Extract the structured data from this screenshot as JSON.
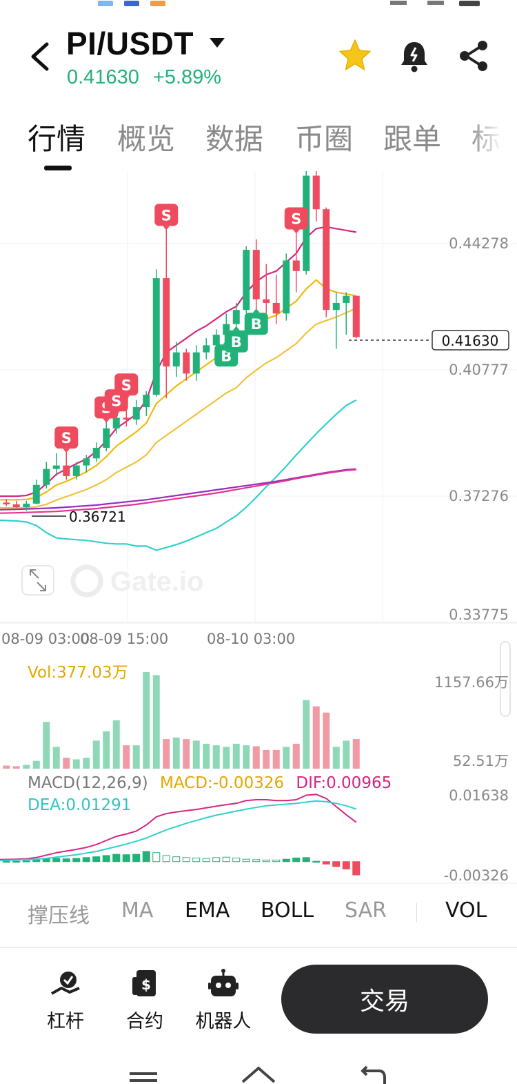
{
  "header": {
    "pair": "PI/USDT",
    "price": "0.41630",
    "change": "+5.89%"
  },
  "tabs": [
    {
      "label": "行情",
      "active": true
    },
    {
      "label": "概览",
      "active": false
    },
    {
      "label": "数据",
      "active": false
    },
    {
      "label": "币圈",
      "active": false
    },
    {
      "label": "跟单",
      "active": false
    },
    {
      "label": "标",
      "active": false
    }
  ],
  "chart": {
    "price_axis": [
      "0.44278",
      "0.40777",
      "0.37276",
      "0.33775"
    ],
    "current_price_tag": "0.41630",
    "low_marker": "0.36721",
    "time_axis": [
      "08-09 03:00",
      "08-09 15:00",
      "08-10 03:00"
    ],
    "watermark": "Gate.io",
    "vol_label": "Vol:377.03万",
    "vol_axis": [
      "1157.66万",
      "52.51万"
    ],
    "macd_params": "MACD(12,26,9)",
    "macd_value": "MACD:-0.00326",
    "dif_value": "DIF:0.00965",
    "dea_value": "DEA:0.01291",
    "macd_axis": [
      "0.01638",
      "-0.00326"
    ],
    "colors": {
      "up": "#22b179",
      "down": "#ee4b5e",
      "ma1": "#d6257f",
      "ma2": "#f0b90b",
      "boll": "#30cfcf",
      "ma3": "#9b2bbf"
    }
  },
  "chart_data": {
    "type": "candlestick",
    "price_ylim": [
      0.33775,
      0.44278
    ],
    "candles": [
      {
        "o": 0.3695,
        "h": 0.3705,
        "l": 0.3685,
        "c": 0.369
      },
      {
        "o": 0.369,
        "h": 0.37,
        "l": 0.368,
        "c": 0.3682
      },
      {
        "o": 0.3682,
        "h": 0.37,
        "l": 0.3672,
        "c": 0.3692
      },
      {
        "o": 0.3692,
        "h": 0.376,
        "l": 0.369,
        "c": 0.3745
      },
      {
        "o": 0.3745,
        "h": 0.381,
        "l": 0.3735,
        "c": 0.379
      },
      {
        "o": 0.379,
        "h": 0.3835,
        "l": 0.377,
        "c": 0.38
      },
      {
        "o": 0.38,
        "h": 0.384,
        "l": 0.376,
        "c": 0.377
      },
      {
        "o": 0.377,
        "h": 0.381,
        "l": 0.376,
        "c": 0.38
      },
      {
        "o": 0.38,
        "h": 0.383,
        "l": 0.378,
        "c": 0.382
      },
      {
        "o": 0.382,
        "h": 0.3865,
        "l": 0.381,
        "c": 0.385
      },
      {
        "o": 0.385,
        "h": 0.3925,
        "l": 0.384,
        "c": 0.3905
      },
      {
        "o": 0.3905,
        "h": 0.3945,
        "l": 0.389,
        "c": 0.3935
      },
      {
        "o": 0.3935,
        "h": 0.399,
        "l": 0.391,
        "c": 0.393
      },
      {
        "o": 0.393,
        "h": 0.3985,
        "l": 0.3915,
        "c": 0.3965
      },
      {
        "o": 0.3965,
        "h": 0.401,
        "l": 0.394,
        "c": 0.4
      },
      {
        "o": 0.4,
        "h": 0.4355,
        "l": 0.3995,
        "c": 0.433
      },
      {
        "o": 0.433,
        "h": 0.447,
        "l": 0.399,
        "c": 0.408
      },
      {
        "o": 0.408,
        "h": 0.415,
        "l": 0.405,
        "c": 0.412
      },
      {
        "o": 0.412,
        "h": 0.413,
        "l": 0.404,
        "c": 0.406
      },
      {
        "o": 0.406,
        "h": 0.414,
        "l": 0.404,
        "c": 0.412
      },
      {
        "o": 0.412,
        "h": 0.416,
        "l": 0.41,
        "c": 0.414
      },
      {
        "o": 0.414,
        "h": 0.4185,
        "l": 0.412,
        "c": 0.417
      },
      {
        "o": 0.417,
        "h": 0.423,
        "l": 0.415,
        "c": 0.42
      },
      {
        "o": 0.42,
        "h": 0.426,
        "l": 0.419,
        "c": 0.424
      },
      {
        "o": 0.424,
        "h": 0.442,
        "l": 0.423,
        "c": 0.441
      },
      {
        "o": 0.441,
        "h": 0.444,
        "l": 0.424,
        "c": 0.427
      },
      {
        "o": 0.427,
        "h": 0.437,
        "l": 0.42,
        "c": 0.426
      },
      {
        "o": 0.426,
        "h": 0.434,
        "l": 0.42,
        "c": 0.423
      },
      {
        "o": 0.423,
        "h": 0.44,
        "l": 0.421,
        "c": 0.438
      },
      {
        "o": 0.438,
        "h": 0.446,
        "l": 0.429,
        "c": 0.435
      },
      {
        "o": 0.435,
        "h": 0.464,
        "l": 0.434,
        "c": 0.462
      },
      {
        "o": 0.462,
        "h": 0.466,
        "l": 0.449,
        "c": 0.4525
      },
      {
        "o": 0.4525,
        "h": 0.453,
        "l": 0.422,
        "c": 0.424
      },
      {
        "o": 0.424,
        "h": 0.429,
        "l": 0.413,
        "c": 0.426
      },
      {
        "o": 0.426,
        "h": 0.429,
        "l": 0.417,
        "c": 0.428
      },
      {
        "o": 0.428,
        "h": 0.428,
        "l": 0.416,
        "c": 0.4163
      }
    ],
    "volumes": [
      10,
      8,
      12,
      25,
      150,
      70,
      35,
      30,
      35,
      90,
      120,
      155,
      75,
      75,
      310,
      300,
      95,
      100,
      95,
      90,
      80,
      75,
      70,
      80,
      75,
      72,
      60,
      60,
      70,
      80,
      220,
      200,
      180,
      70,
      90,
      95
    ],
    "macd_hist": [
      0.0001,
      0.0001,
      0.0002,
      0.0004,
      0.0008,
      0.0008,
      0.0007,
      0.0008,
      0.001,
      0.0012,
      0.0015,
      0.0018,
      0.0017,
      0.0018,
      0.0025,
      0.0022,
      0.0015,
      0.0012,
      0.001,
      0.0009,
      0.0008,
      0.001,
      0.0011,
      0.0009,
      0.0006,
      0.0005,
      0.0004,
      0.0004,
      0.0006,
      0.0009,
      0.001,
      0.0001,
      -0.0006,
      -0.0012,
      -0.0018,
      -0.00326
    ],
    "price_lines": {
      "ma_pink": [
        0.3713,
        0.3713,
        0.3715,
        0.3725,
        0.3748,
        0.3775,
        0.379,
        0.3805,
        0.3818,
        0.384,
        0.387,
        0.3905,
        0.3925,
        0.3945,
        0.3985,
        0.4065,
        0.412,
        0.414,
        0.416,
        0.418,
        0.4195,
        0.4215,
        0.4235,
        0.425,
        0.429,
        0.432,
        0.434,
        0.435,
        0.4375,
        0.44,
        0.4445,
        0.447,
        0.4475,
        0.447,
        0.4465,
        0.446
      ],
      "ma_orange": [
        0.3703,
        0.3703,
        0.3704,
        0.371,
        0.3725,
        0.3745,
        0.3755,
        0.3768,
        0.3782,
        0.38,
        0.3825,
        0.3855,
        0.3875,
        0.3895,
        0.392,
        0.3975,
        0.4,
        0.4025,
        0.4045,
        0.4065,
        0.4085,
        0.4105,
        0.4125,
        0.414,
        0.4175,
        0.42,
        0.4215,
        0.4225,
        0.4245,
        0.4265,
        0.43,
        0.4325,
        0.43,
        0.429,
        0.4285,
        0.428
      ],
      "ma_yellow2": [
        0.368,
        0.368,
        0.368,
        0.3683,
        0.369,
        0.3702,
        0.3712,
        0.3722,
        0.3732,
        0.3745,
        0.376,
        0.378,
        0.3795,
        0.381,
        0.383,
        0.3865,
        0.3885,
        0.3905,
        0.3925,
        0.3945,
        0.3965,
        0.3985,
        0.4005,
        0.402,
        0.4048,
        0.407,
        0.409,
        0.4105,
        0.4125,
        0.4145,
        0.4175,
        0.42,
        0.421,
        0.422,
        0.4232,
        0.4245
      ],
      "boll_lower": [
        0.3645,
        0.3643,
        0.364,
        0.363,
        0.361,
        0.3595,
        0.3592,
        0.359,
        0.3588,
        0.3584,
        0.358,
        0.3578,
        0.3578,
        0.3572,
        0.3572,
        0.356,
        0.3568,
        0.3576,
        0.3586,
        0.3598,
        0.361,
        0.3622,
        0.364,
        0.3658,
        0.3682,
        0.371,
        0.374,
        0.3768,
        0.3798,
        0.383,
        0.386,
        0.389,
        0.3918,
        0.3945,
        0.397,
        0.3985
      ],
      "ma_purple": [
        0.3675,
        0.3676,
        0.3677,
        0.3678,
        0.3679,
        0.368,
        0.3682,
        0.3684,
        0.3686,
        0.3688,
        0.3691,
        0.3694,
        0.3697,
        0.37,
        0.3703,
        0.3707,
        0.3711,
        0.3715,
        0.3719,
        0.3723,
        0.3727,
        0.3731,
        0.3735,
        0.3739,
        0.3743,
        0.3747,
        0.3751,
        0.3755,
        0.376,
        0.3765,
        0.377,
        0.3775,
        0.378,
        0.3784,
        0.3788,
        0.379
      ],
      "ma_magenta2": [
        0.3665,
        0.3666,
        0.3667,
        0.3668,
        0.3669,
        0.367,
        0.3672,
        0.3674,
        0.3676,
        0.3678,
        0.3681,
        0.3684,
        0.3687,
        0.369,
        0.3694,
        0.3698,
        0.3702,
        0.3706,
        0.371,
        0.3714,
        0.3718,
        0.3722,
        0.3727,
        0.3732,
        0.3737,
        0.3742,
        0.3747,
        0.3752,
        0.3757,
        0.3763,
        0.3768,
        0.3773,
        0.3778,
        0.3782,
        0.3786,
        0.3788
      ]
    },
    "macd_lines": {
      "dif": [
        0.0005,
        0.0006,
        0.0007,
        0.001,
        0.0016,
        0.0022,
        0.0026,
        0.003,
        0.0035,
        0.0042,
        0.0052,
        0.0062,
        0.0068,
        0.0075,
        0.009,
        0.011,
        0.0118,
        0.0122,
        0.0125,
        0.0128,
        0.0132,
        0.0136,
        0.014,
        0.0143,
        0.015,
        0.0152,
        0.0152,
        0.015,
        0.015,
        0.0152,
        0.0163,
        0.0165,
        0.0155,
        0.0135,
        0.0115,
        0.00965
      ],
      "dea": [
        0.0003,
        0.0004,
        0.0005,
        0.0006,
        0.0008,
        0.0011,
        0.0014,
        0.0017,
        0.0021,
        0.0025,
        0.0031,
        0.0037,
        0.0043,
        0.005,
        0.0058,
        0.0068,
        0.0078,
        0.0086,
        0.0094,
        0.0101,
        0.0108,
        0.0114,
        0.0119,
        0.0124,
        0.0129,
        0.0133,
        0.0137,
        0.0139,
        0.0141,
        0.0143,
        0.0146,
        0.0149,
        0.0147,
        0.0143,
        0.0137,
        0.01291
      ]
    },
    "signals": [
      {
        "type": "S",
        "candle": 6
      },
      {
        "type": "S",
        "candle": 10
      },
      {
        "type": "S",
        "candle": 11
      },
      {
        "type": "S",
        "candle": 12
      },
      {
        "type": "S",
        "candle": 16
      },
      {
        "type": "B",
        "candle": 22
      },
      {
        "type": "B",
        "candle": 23
      },
      {
        "type": "B",
        "candle": 25
      },
      {
        "type": "S",
        "candle": 29
      }
    ]
  },
  "indicators": [
    {
      "label": "撑压线",
      "on": false
    },
    {
      "label": "MA",
      "on": false
    },
    {
      "label": "EMA",
      "on": true
    },
    {
      "label": "BOLL",
      "on": true
    },
    {
      "label": "SAR",
      "on": false
    },
    {
      "label": "VOL",
      "on": true
    }
  ],
  "bottom": {
    "leverage_label": "杠杆",
    "contract_label": "合约",
    "robot_label": "机器人",
    "trade_label": "交易"
  }
}
